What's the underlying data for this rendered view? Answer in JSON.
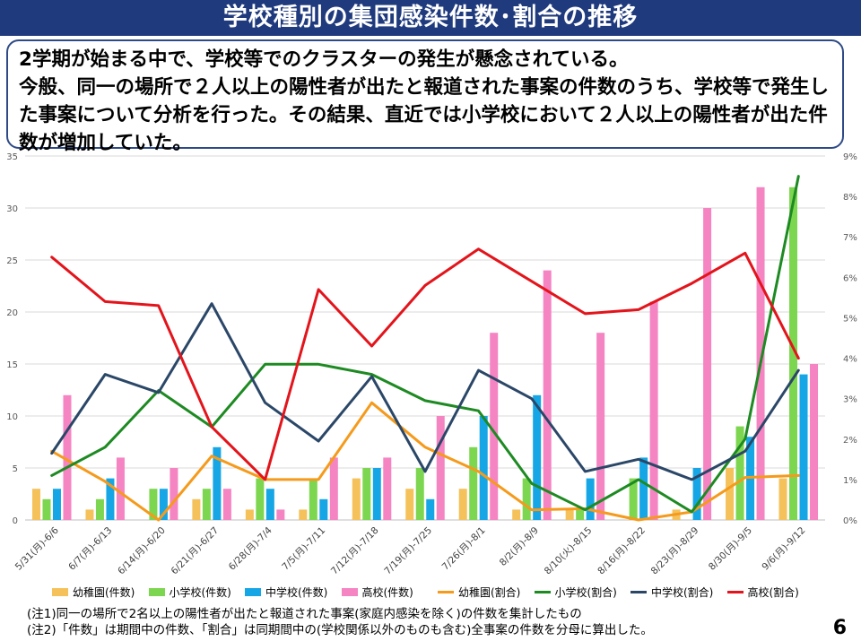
{
  "title": "学校種別の集団感染件数･割合の推移",
  "summary": {
    "line1": "2学期が始まる中で、学校等でのクラスターの発生が懸念されている。",
    "line2": "今般、同一の場所で２人以上の陽性者が出たと報道された事案の件数のうち、学校等で発生した事案について分析を行った。その結果、直近では小学校において２人以上の陽性者が出た件数が増加していた。"
  },
  "chart_data": {
    "type": "bar",
    "categories": [
      "5/31(月)-6/6",
      "6/7(月)-6/13",
      "6/14(月)-6/20",
      "6/21(月)-6/27",
      "6/28(月)-7/4",
      "7/5(月)-7/11",
      "7/12(月)-7/18",
      "7/19(月)-7/25",
      "7/26(月)-8/1",
      "8/2(月)-8/9",
      "8/10(火)-8/15",
      "8/16(月)-8/22",
      "8/23(月)-8/29",
      "8/30(月)-9/5",
      "9/6(月)-9/12"
    ],
    "left_axis": {
      "min": 0,
      "max": 35,
      "step": 5,
      "ticks": [
        "0",
        "5",
        "10",
        "15",
        "20",
        "25",
        "30",
        "35"
      ]
    },
    "right_axis": {
      "min": 0,
      "max": 9,
      "step": 1,
      "ticks": [
        "0%",
        "1%",
        "2%",
        "3%",
        "4%",
        "5%",
        "6%",
        "7%",
        "8%",
        "9%"
      ]
    },
    "bar_series": [
      {
        "name": "幼稚園(件数)",
        "color": "#f5c15a",
        "values": [
          3,
          1,
          0,
          2,
          1,
          1,
          4,
          3,
          3,
          1,
          1,
          0,
          1,
          5,
          4
        ]
      },
      {
        "name": "小学校(件数)",
        "color": "#7dd64f",
        "values": [
          2,
          2,
          3,
          3,
          4,
          4,
          5,
          5,
          7,
          4,
          1,
          4,
          0,
          9,
          32
        ]
      },
      {
        "name": "中学校(件数)",
        "color": "#16a6e6",
        "values": [
          3,
          4,
          3,
          7,
          3,
          2,
          5,
          2,
          10,
          12,
          4,
          6,
          5,
          8,
          14
        ]
      },
      {
        "name": "高校(件数)",
        "color": "#f584c3",
        "values": [
          12,
          6,
          5,
          3,
          1,
          6,
          6,
          10,
          18,
          24,
          18,
          21,
          30,
          32,
          15
        ]
      }
    ],
    "line_series": [
      {
        "name": "幼稚園(割合)",
        "color": "#f59a1b",
        "values": [
          1.7,
          0.95,
          0.0,
          1.58,
          1.0,
          1.0,
          2.9,
          1.8,
          1.2,
          0.25,
          0.28,
          0.0,
          0.2,
          1.05,
          1.1
        ]
      },
      {
        "name": "小学校(割合)",
        "color": "#1d8a22",
        "values": [
          1.1,
          1.8,
          3.2,
          2.3,
          3.85,
          3.85,
          3.6,
          2.95,
          2.7,
          0.9,
          0.25,
          1.0,
          0.2,
          2.0,
          8.5
        ]
      },
      {
        "name": "中学校(割合)",
        "color": "#2b4768",
        "values": [
          1.65,
          3.6,
          3.15,
          5.35,
          2.9,
          1.95,
          3.55,
          1.2,
          3.7,
          3.0,
          1.2,
          1.5,
          1.0,
          1.7,
          3.7
        ]
      },
      {
        "name": "高校(割合)",
        "color": "#e3141b",
        "values": [
          6.5,
          5.4,
          5.3,
          2.3,
          1.0,
          5.7,
          4.3,
          5.8,
          6.7,
          5.9,
          5.1,
          5.2,
          5.85,
          6.6,
          4.0
        ]
      }
    ]
  },
  "notes": {
    "note1": "(注1)同一の場所で2名以上の陽性者が出たと報道された事案(家庭内感染を除く)の件数を集計したもの",
    "note2": "(注2)「件数」は期間中の件数、「割合」は同期間中の(学校関係以外のものも含む)全事案の件数を分母に算出した。"
  },
  "page_number": "6"
}
